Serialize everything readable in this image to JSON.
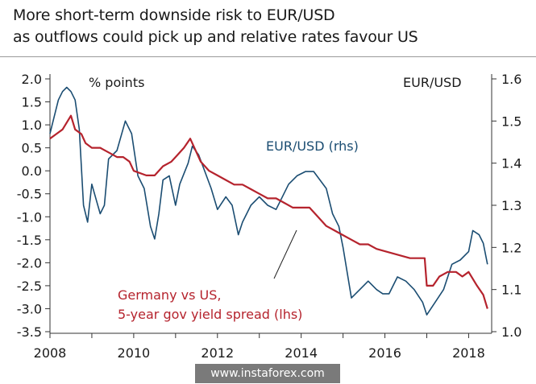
{
  "title_line1": "More short-term downside risk to EUR/USD",
  "title_line2": "as outflows could pick up and relative rates favour US",
  "watermark": "www.instaforex.com",
  "colors": {
    "eurusd": "#1b4d72",
    "spread": "#b5232d",
    "text": "#1a1a1a"
  },
  "chart_data": {
    "type": "line",
    "title": "More short-term downside risk to EUR/USD as outflows could pick up and relative rates favour US",
    "left_axis_label": "% points",
    "right_axis_label": "EUR/USD",
    "x_ticks": [
      "2008",
      "2010",
      "2012",
      "2014",
      "2016",
      "2018"
    ],
    "x_range": [
      2008.0,
      2018.55
    ],
    "y_left_ticks": [
      "2.0",
      "1.5",
      "1.0",
      "0.5",
      "0.0",
      "-0.5",
      "-1.0",
      "-1.5",
      "-2.0",
      "-2.5",
      "-3.0",
      "-3.5"
    ],
    "y_left_range": [
      -3.5,
      2.0
    ],
    "y_right_ticks": [
      "1.6",
      "1.5",
      "1.4",
      "1.3",
      "1.2",
      "1.1",
      "1.0"
    ],
    "y_right_range": [
      1.0,
      1.6
    ],
    "grid": false,
    "annotations": [
      {
        "text": "EUR/USD (rhs)",
        "series": "EUR/USD"
      },
      {
        "text": "Germany vs US,",
        "series": "spread"
      },
      {
        "text": "5-year gov yield spread  (lhs)",
        "series": "spread"
      }
    ],
    "series": [
      {
        "name": "EUR/USD",
        "axis": "right",
        "x": [
          2008.0,
          2008.1,
          2008.2,
          2008.3,
          2008.4,
          2008.5,
          2008.6,
          2008.7,
          2008.8,
          2008.9,
          2009.0,
          2009.2,
          2009.3,
          2009.4,
          2009.6,
          2009.8,
          2009.95,
          2010.1,
          2010.25,
          2010.4,
          2010.5,
          2010.6,
          2010.7,
          2010.85,
          2011.0,
          2011.1,
          2011.3,
          2011.4,
          2011.55,
          2011.7,
          2011.85,
          2012.0,
          2012.2,
          2012.35,
          2012.5,
          2012.6,
          2012.8,
          2013.0,
          2013.2,
          2013.4,
          2013.5,
          2013.7,
          2013.9,
          2014.1,
          2014.3,
          2014.45,
          2014.6,
          2014.75,
          2014.9,
          2015.0,
          2015.1,
          2015.2,
          2015.4,
          2015.6,
          2015.8,
          2015.95,
          2016.1,
          2016.3,
          2016.5,
          2016.7,
          2016.9,
          2017.0,
          2017.2,
          2017.4,
          2017.6,
          2017.8,
          2018.0,
          2018.1,
          2018.25,
          2018.35,
          2018.45
        ],
        "y": [
          1.47,
          1.51,
          1.55,
          1.57,
          1.58,
          1.57,
          1.55,
          1.48,
          1.3,
          1.26,
          1.35,
          1.28,
          1.3,
          1.41,
          1.43,
          1.5,
          1.47,
          1.37,
          1.34,
          1.25,
          1.22,
          1.28,
          1.36,
          1.37,
          1.3,
          1.35,
          1.4,
          1.44,
          1.42,
          1.38,
          1.34,
          1.29,
          1.32,
          1.3,
          1.23,
          1.26,
          1.3,
          1.32,
          1.3,
          1.29,
          1.31,
          1.35,
          1.37,
          1.38,
          1.38,
          1.36,
          1.34,
          1.28,
          1.25,
          1.2,
          1.14,
          1.08,
          1.1,
          1.12,
          1.1,
          1.09,
          1.09,
          1.13,
          1.12,
          1.1,
          1.07,
          1.04,
          1.07,
          1.1,
          1.16,
          1.17,
          1.19,
          1.24,
          1.23,
          1.21,
          1.16
        ]
      },
      {
        "name": "Germany vs US, 5-year gov yield spread",
        "axis": "left",
        "x": [
          2008.0,
          2008.15,
          2008.3,
          2008.5,
          2008.6,
          2008.75,
          2008.85,
          2009.0,
          2009.2,
          2009.4,
          2009.6,
          2009.75,
          2009.9,
          2010.0,
          2010.3,
          2010.5,
          2010.7,
          2010.9,
          2011.0,
          2011.2,
          2011.35,
          2011.5,
          2011.6,
          2011.8,
          2012.0,
          2012.2,
          2012.4,
          2012.6,
          2012.8,
          2013.0,
          2013.2,
          2013.4,
          2013.6,
          2013.8,
          2014.0,
          2014.2,
          2014.4,
          2014.6,
          2014.8,
          2015.0,
          2015.2,
          2015.4,
          2015.6,
          2015.8,
          2016.0,
          2016.2,
          2016.4,
          2016.6,
          2016.8,
          2016.95,
          2017.0,
          2017.15,
          2017.3,
          2017.5,
          2017.7,
          2017.85,
          2018.0,
          2018.2,
          2018.35,
          2018.45
        ],
        "y": [
          0.7,
          0.8,
          0.9,
          1.2,
          0.9,
          0.8,
          0.6,
          0.5,
          0.5,
          0.4,
          0.3,
          0.3,
          0.2,
          0.0,
          -0.1,
          -0.1,
          0.1,
          0.2,
          0.3,
          0.5,
          0.7,
          0.4,
          0.2,
          0.0,
          -0.1,
          -0.2,
          -0.3,
          -0.3,
          -0.4,
          -0.5,
          -0.6,
          -0.6,
          -0.7,
          -0.8,
          -0.8,
          -0.8,
          -1.0,
          -1.2,
          -1.3,
          -1.4,
          -1.5,
          -1.6,
          -1.6,
          -1.7,
          -1.75,
          -1.8,
          -1.85,
          -1.9,
          -1.9,
          -1.9,
          -2.5,
          -2.5,
          -2.3,
          -2.2,
          -2.2,
          -2.3,
          -2.2,
          -2.5,
          -2.7,
          -3.0
        ]
      }
    ]
  }
}
